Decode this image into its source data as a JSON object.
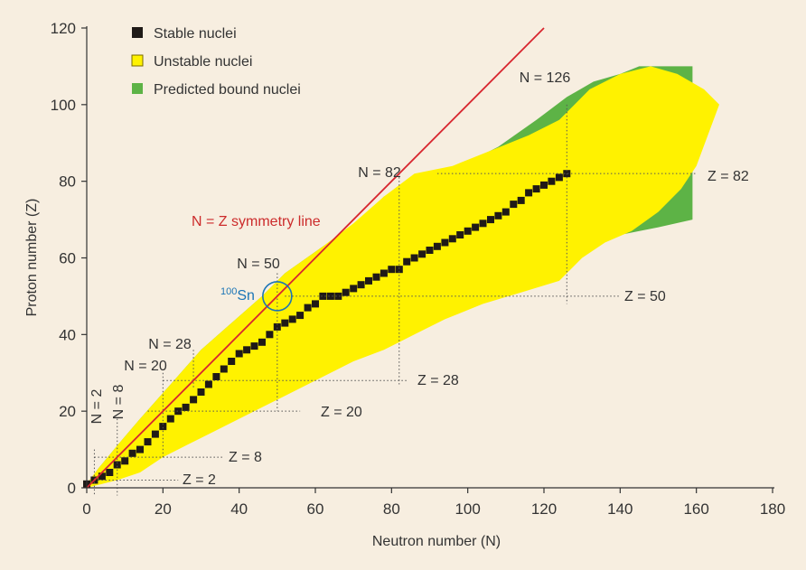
{
  "chart_data": {
    "type": "scatter",
    "xlabel": "Neutron number (N)",
    "ylabel": "Proton number (Z)",
    "xlim": [
      0,
      180
    ],
    "ylim": [
      0,
      120
    ],
    "xticks": [
      "0",
      "20",
      "40",
      "60",
      "80",
      "100",
      "120",
      "140",
      "160",
      "180"
    ],
    "yticks": [
      "0",
      "20",
      "40",
      "60",
      "80",
      "100",
      "120"
    ],
    "grid": false,
    "legend_position": "top-left",
    "legend": [
      {
        "label": "Stable nuclei",
        "color": "#1f1a17"
      },
      {
        "label": "Unstable nuclei",
        "color": "#fff200"
      },
      {
        "label": "Predicted bound nuclei",
        "color": "#5db346"
      }
    ],
    "regions": {
      "predicted_bound": [
        [
          0,
          1
        ],
        [
          2,
          2
        ],
        [
          6,
          4
        ],
        [
          10,
          7
        ],
        [
          16,
          10
        ],
        [
          22,
          14
        ],
        [
          28,
          18
        ],
        [
          36,
          22
        ],
        [
          44,
          26
        ],
        [
          50,
          30
        ],
        [
          58,
          33
        ],
        [
          66,
          36
        ],
        [
          74,
          40
        ],
        [
          82,
          44
        ],
        [
          90,
          47
        ],
        [
          100,
          51
        ],
        [
          110,
          56
        ],
        [
          120,
          61
        ],
        [
          130,
          64
        ],
        [
          140,
          66
        ],
        [
          150,
          68
        ],
        [
          159,
          70
        ],
        [
          159,
          110
        ],
        [
          150,
          110
        ],
        [
          145,
          110
        ],
        [
          140,
          108
        ],
        [
          133,
          106
        ],
        [
          126,
          102
        ],
        [
          118,
          96
        ],
        [
          108,
          89
        ],
        [
          98,
          84
        ],
        [
          88,
          82
        ],
        [
          78,
          76
        ],
        [
          70,
          68
        ],
        [
          62,
          63
        ],
        [
          52,
          56
        ],
        [
          46,
          50
        ],
        [
          38,
          43
        ],
        [
          30,
          36
        ],
        [
          22,
          27
        ],
        [
          14,
          18
        ],
        [
          8,
          11
        ],
        [
          3,
          5
        ],
        [
          0,
          1
        ]
      ],
      "unstable": [
        [
          0,
          0
        ],
        [
          4,
          1
        ],
        [
          8,
          2
        ],
        [
          14,
          4
        ],
        [
          20,
          8
        ],
        [
          26,
          11
        ],
        [
          32,
          14
        ],
        [
          40,
          18
        ],
        [
          46,
          21
        ],
        [
          52,
          24
        ],
        [
          58,
          27
        ],
        [
          64,
          30
        ],
        [
          70,
          33
        ],
        [
          78,
          36
        ],
        [
          86,
          40
        ],
        [
          94,
          44
        ],
        [
          104,
          48
        ],
        [
          114,
          51
        ],
        [
          124,
          54
        ],
        [
          130,
          60
        ],
        [
          136,
          64
        ],
        [
          143,
          67
        ],
        [
          150,
          72
        ],
        [
          156,
          78
        ],
        [
          160,
          84
        ],
        [
          166,
          100
        ],
        [
          162,
          104
        ],
        [
          155,
          108
        ],
        [
          148,
          110
        ],
        [
          140,
          108
        ],
        [
          132,
          104
        ],
        [
          124,
          96
        ],
        [
          116,
          92
        ],
        [
          106,
          88
        ],
        [
          96,
          84
        ],
        [
          86,
          82
        ],
        [
          78,
          76
        ],
        [
          70,
          69
        ],
        [
          62,
          63
        ],
        [
          52,
          56
        ],
        [
          46,
          50
        ],
        [
          38,
          43
        ],
        [
          30,
          36
        ],
        [
          22,
          27
        ],
        [
          14,
          18
        ],
        [
          8,
          11
        ],
        [
          3,
          5
        ],
        [
          0,
          1
        ]
      ]
    },
    "stable_valley": [
      [
        0,
        1
      ],
      [
        2,
        2
      ],
      [
        4,
        3
      ],
      [
        6,
        4
      ],
      [
        8,
        6
      ],
      [
        10,
        7
      ],
      [
        12,
        9
      ],
      [
        14,
        10
      ],
      [
        16,
        12
      ],
      [
        18,
        14
      ],
      [
        20,
        16
      ],
      [
        22,
        18
      ],
      [
        24,
        20
      ],
      [
        26,
        21
      ],
      [
        28,
        23
      ],
      [
        30,
        25
      ],
      [
        32,
        27
      ],
      [
        34,
        29
      ],
      [
        36,
        31
      ],
      [
        38,
        33
      ],
      [
        40,
        35
      ],
      [
        42,
        36
      ],
      [
        44,
        37
      ],
      [
        46,
        38
      ],
      [
        48,
        40
      ],
      [
        50,
        42
      ],
      [
        52,
        43
      ],
      [
        54,
        44
      ],
      [
        56,
        45
      ],
      [
        58,
        47
      ],
      [
        60,
        48
      ],
      [
        62,
        50
      ],
      [
        64,
        50
      ],
      [
        66,
        50
      ],
      [
        68,
        51
      ],
      [
        70,
        52
      ],
      [
        72,
        53
      ],
      [
        74,
        54
      ],
      [
        76,
        55
      ],
      [
        78,
        56
      ],
      [
        80,
        57
      ],
      [
        82,
        57
      ],
      [
        84,
        59
      ],
      [
        86,
        60
      ],
      [
        88,
        61
      ],
      [
        90,
        62
      ],
      [
        92,
        63
      ],
      [
        94,
        64
      ],
      [
        96,
        65
      ],
      [
        98,
        66
      ],
      [
        100,
        67
      ],
      [
        102,
        68
      ],
      [
        104,
        69
      ],
      [
        106,
        70
      ],
      [
        108,
        71
      ],
      [
        110,
        72
      ],
      [
        112,
        74
      ],
      [
        114,
        75
      ],
      [
        116,
        77
      ],
      [
        118,
        78
      ],
      [
        120,
        79
      ],
      [
        122,
        80
      ],
      [
        124,
        81
      ],
      [
        126,
        82
      ]
    ],
    "n_equals_z_line": {
      "label": "N = Z symmetry line",
      "from": [
        0,
        0
      ],
      "to": [
        120,
        120
      ]
    },
    "magic_neutron": [
      {
        "n": 2,
        "label": "N = 2"
      },
      {
        "n": 8,
        "label": "N = 8"
      },
      {
        "n": 20,
        "label": "N = 20"
      },
      {
        "n": 28,
        "label": "N = 28"
      },
      {
        "n": 50,
        "label": "N = 50"
      },
      {
        "n": 82,
        "label": "N = 82"
      },
      {
        "n": 126,
        "label": "N = 126"
      }
    ],
    "magic_proton": [
      {
        "z": 2,
        "label": "Z = 2"
      },
      {
        "z": 8,
        "label": "Z = 8"
      },
      {
        "z": 20,
        "label": "Z = 20"
      },
      {
        "z": 28,
        "label": "Z = 28"
      },
      {
        "z": 50,
        "label": "Z = 50"
      },
      {
        "z": 82,
        "label": "Z = 82"
      }
    ],
    "annotation": {
      "mass": "100",
      "symbol": "Sn",
      "n": 50,
      "z": 50
    }
  }
}
